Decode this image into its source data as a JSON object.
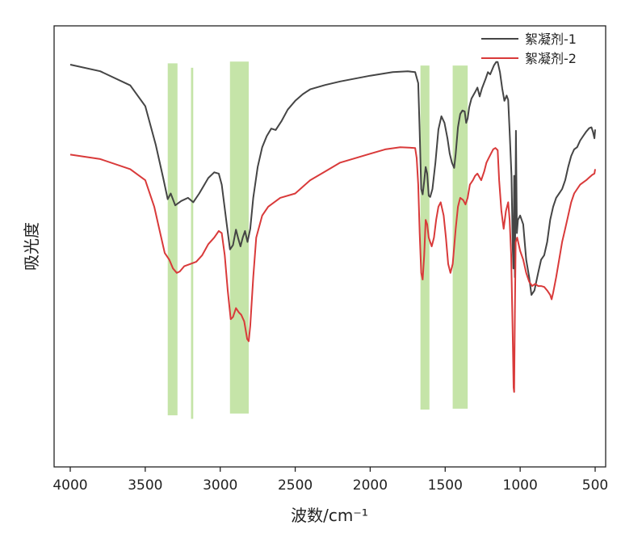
{
  "chart_data": {
    "type": "line",
    "title": "",
    "xlabel": "波数/cm⁻¹",
    "ylabel": "吸光度",
    "xlim": [
      4000,
      500
    ],
    "x_reversed": true,
    "y_ticks_shown": false,
    "xticks": [
      4000,
      3500,
      3000,
      2500,
      2000,
      1500,
      1000,
      500
    ],
    "ylim": [
      0,
      1
    ],
    "grid": false,
    "legend_position": "top-right",
    "highlight_color": "#b5dc8f",
    "highlight_bands": [
      {
        "from": 3350,
        "to": 3285,
        "top": 0.915,
        "bottom": 0.117
      },
      {
        "from": 3195,
        "to": 3180,
        "top": 0.905,
        "bottom": 0.109
      },
      {
        "from": 2935,
        "to": 2810,
        "top": 0.919,
        "bottom": 0.121
      },
      {
        "from": 1665,
        "to": 1605,
        "top": 0.91,
        "bottom": 0.13
      },
      {
        "from": 1450,
        "to": 1350,
        "top": 0.91,
        "bottom": 0.132
      }
    ],
    "series": [
      {
        "name": "絮凝剂-1",
        "color": "#454545",
        "points": [
          [
            4000,
            0.912
          ],
          [
            3800,
            0.897
          ],
          [
            3600,
            0.865
          ],
          [
            3500,
            0.818
          ],
          [
            3430,
            0.73
          ],
          [
            3380,
            0.655
          ],
          [
            3350,
            0.607
          ],
          [
            3330,
            0.62
          ],
          [
            3300,
            0.593
          ],
          [
            3260,
            0.603
          ],
          [
            3215,
            0.61
          ],
          [
            3180,
            0.6
          ],
          [
            3140,
            0.62
          ],
          [
            3080,
            0.655
          ],
          [
            3040,
            0.668
          ],
          [
            3010,
            0.665
          ],
          [
            2990,
            0.64
          ],
          [
            2960,
            0.56
          ],
          [
            2935,
            0.493
          ],
          [
            2915,
            0.503
          ],
          [
            2895,
            0.538
          ],
          [
            2880,
            0.518
          ],
          [
            2865,
            0.5
          ],
          [
            2850,
            0.52
          ],
          [
            2835,
            0.535
          ],
          [
            2818,
            0.51
          ],
          [
            2800,
            0.54
          ],
          [
            2780,
            0.61
          ],
          [
            2750,
            0.68
          ],
          [
            2720,
            0.725
          ],
          [
            2690,
            0.75
          ],
          [
            2660,
            0.767
          ],
          [
            2630,
            0.764
          ],
          [
            2590,
            0.785
          ],
          [
            2550,
            0.81
          ],
          [
            2500,
            0.83
          ],
          [
            2450,
            0.845
          ],
          [
            2400,
            0.856
          ],
          [
            2300,
            0.866
          ],
          [
            2200,
            0.874
          ],
          [
            2000,
            0.887
          ],
          [
            1850,
            0.895
          ],
          [
            1750,
            0.897
          ],
          [
            1700,
            0.895
          ],
          [
            1680,
            0.87
          ],
          [
            1670,
            0.76
          ],
          [
            1660,
            0.63
          ],
          [
            1650,
            0.618
          ],
          [
            1640,
            0.648
          ],
          [
            1630,
            0.68
          ],
          [
            1620,
            0.665
          ],
          [
            1610,
            0.615
          ],
          [
            1600,
            0.612
          ],
          [
            1585,
            0.63
          ],
          [
            1565,
            0.69
          ],
          [
            1545,
            0.765
          ],
          [
            1525,
            0.795
          ],
          [
            1505,
            0.78
          ],
          [
            1485,
            0.745
          ],
          [
            1470,
            0.71
          ],
          [
            1455,
            0.69
          ],
          [
            1440,
            0.678
          ],
          [
            1430,
            0.71
          ],
          [
            1415,
            0.77
          ],
          [
            1400,
            0.8
          ],
          [
            1385,
            0.808
          ],
          [
            1370,
            0.806
          ],
          [
            1360,
            0.78
          ],
          [
            1350,
            0.79
          ],
          [
            1340,
            0.815
          ],
          [
            1325,
            0.835
          ],
          [
            1300,
            0.85
          ],
          [
            1285,
            0.86
          ],
          [
            1270,
            0.84
          ],
          [
            1255,
            0.858
          ],
          [
            1230,
            0.88
          ],
          [
            1215,
            0.895
          ],
          [
            1200,
            0.89
          ],
          [
            1175,
            0.91
          ],
          [
            1160,
            0.918
          ],
          [
            1150,
            0.918
          ],
          [
            1135,
            0.895
          ],
          [
            1120,
            0.858
          ],
          [
            1105,
            0.83
          ],
          [
            1090,
            0.842
          ],
          [
            1080,
            0.832
          ],
          [
            1070,
            0.76
          ],
          [
            1058,
            0.66
          ],
          [
            1050,
            0.5
          ],
          [
            1045,
            0.45
          ],
          [
            1040,
            0.66
          ],
          [
            1035,
            0.43
          ],
          [
            1028,
            0.762
          ],
          [
            1022,
            0.53
          ],
          [
            1015,
            0.56
          ],
          [
            1000,
            0.57
          ],
          [
            980,
            0.55
          ],
          [
            960,
            0.47
          ],
          [
            940,
            0.43
          ],
          [
            925,
            0.39
          ],
          [
            905,
            0.4
          ],
          [
            880,
            0.44
          ],
          [
            860,
            0.47
          ],
          [
            840,
            0.48
          ],
          [
            820,
            0.51
          ],
          [
            800,
            0.56
          ],
          [
            780,
            0.59
          ],
          [
            760,
            0.61
          ],
          [
            740,
            0.62
          ],
          [
            720,
            0.63
          ],
          [
            700,
            0.65
          ],
          [
            680,
            0.68
          ],
          [
            660,
            0.705
          ],
          [
            640,
            0.72
          ],
          [
            620,
            0.725
          ],
          [
            600,
            0.74
          ],
          [
            580,
            0.75
          ],
          [
            560,
            0.76
          ],
          [
            540,
            0.768
          ],
          [
            525,
            0.77
          ],
          [
            515,
            0.76
          ],
          [
            505,
            0.745
          ],
          [
            500,
            0.765
          ]
        ]
      },
      {
        "name": "絮凝剂-2",
        "color": "#d93a3a",
        "points": [
          [
            4000,
            0.708
          ],
          [
            3800,
            0.698
          ],
          [
            3600,
            0.675
          ],
          [
            3500,
            0.65
          ],
          [
            3440,
            0.59
          ],
          [
            3400,
            0.53
          ],
          [
            3370,
            0.485
          ],
          [
            3340,
            0.47
          ],
          [
            3315,
            0.45
          ],
          [
            3290,
            0.44
          ],
          [
            3270,
            0.443
          ],
          [
            3240,
            0.455
          ],
          [
            3200,
            0.46
          ],
          [
            3160,
            0.465
          ],
          [
            3120,
            0.48
          ],
          [
            3080,
            0.505
          ],
          [
            3040,
            0.52
          ],
          [
            3010,
            0.535
          ],
          [
            2990,
            0.53
          ],
          [
            2970,
            0.48
          ],
          [
            2950,
            0.4
          ],
          [
            2930,
            0.335
          ],
          [
            2915,
            0.34
          ],
          [
            2895,
            0.36
          ],
          [
            2875,
            0.35
          ],
          [
            2860,
            0.345
          ],
          [
            2840,
            0.33
          ],
          [
            2820,
            0.29
          ],
          [
            2810,
            0.285
          ],
          [
            2800,
            0.32
          ],
          [
            2780,
            0.43
          ],
          [
            2760,
            0.52
          ],
          [
            2720,
            0.57
          ],
          [
            2680,
            0.59
          ],
          [
            2600,
            0.61
          ],
          [
            2500,
            0.62
          ],
          [
            2400,
            0.65
          ],
          [
            2300,
            0.67
          ],
          [
            2200,
            0.69
          ],
          [
            2100,
            0.7
          ],
          [
            2000,
            0.71
          ],
          [
            1900,
            0.72
          ],
          [
            1800,
            0.725
          ],
          [
            1700,
            0.723
          ],
          [
            1690,
            0.7
          ],
          [
            1680,
            0.64
          ],
          [
            1670,
            0.53
          ],
          [
            1660,
            0.44
          ],
          [
            1650,
            0.425
          ],
          [
            1640,
            0.48
          ],
          [
            1630,
            0.56
          ],
          [
            1620,
            0.55
          ],
          [
            1610,
            0.52
          ],
          [
            1600,
            0.51
          ],
          [
            1590,
            0.5
          ],
          [
            1575,
            0.52
          ],
          [
            1560,
            0.56
          ],
          [
            1545,
            0.59
          ],
          [
            1530,
            0.6
          ],
          [
            1510,
            0.57
          ],
          [
            1495,
            0.52
          ],
          [
            1480,
            0.46
          ],
          [
            1465,
            0.44
          ],
          [
            1450,
            0.46
          ],
          [
            1430,
            0.54
          ],
          [
            1415,
            0.59
          ],
          [
            1400,
            0.61
          ],
          [
            1380,
            0.605
          ],
          [
            1365,
            0.595
          ],
          [
            1350,
            0.61
          ],
          [
            1335,
            0.64
          ],
          [
            1315,
            0.65
          ],
          [
            1300,
            0.66
          ],
          [
            1285,
            0.665
          ],
          [
            1260,
            0.65
          ],
          [
            1240,
            0.67
          ],
          [
            1225,
            0.69
          ],
          [
            1210,
            0.7
          ],
          [
            1195,
            0.71
          ],
          [
            1180,
            0.72
          ],
          [
            1165,
            0.723
          ],
          [
            1150,
            0.718
          ],
          [
            1140,
            0.65
          ],
          [
            1125,
            0.58
          ],
          [
            1110,
            0.54
          ],
          [
            1095,
            0.58
          ],
          [
            1080,
            0.6
          ],
          [
            1070,
            0.56
          ],
          [
            1060,
            0.48
          ],
          [
            1050,
            0.3
          ],
          [
            1044,
            0.18
          ],
          [
            1040,
            0.17
          ],
          [
            1035,
            0.35
          ],
          [
            1030,
            0.51
          ],
          [
            1020,
            0.52
          ],
          [
            1000,
            0.49
          ],
          [
            980,
            0.47
          ],
          [
            960,
            0.44
          ],
          [
            940,
            0.42
          ],
          [
            920,
            0.41
          ],
          [
            900,
            0.415
          ],
          [
            880,
            0.41
          ],
          [
            860,
            0.41
          ],
          [
            840,
            0.408
          ],
          [
            820,
            0.4
          ],
          [
            800,
            0.39
          ],
          [
            790,
            0.38
          ],
          [
            780,
            0.395
          ],
          [
            760,
            0.43
          ],
          [
            740,
            0.47
          ],
          [
            720,
            0.51
          ],
          [
            700,
            0.54
          ],
          [
            680,
            0.57
          ],
          [
            660,
            0.6
          ],
          [
            640,
            0.62
          ],
          [
            620,
            0.63
          ],
          [
            600,
            0.64
          ],
          [
            580,
            0.645
          ],
          [
            560,
            0.65
          ],
          [
            540,
            0.656
          ],
          [
            520,
            0.662
          ],
          [
            505,
            0.665
          ],
          [
            500,
            0.675
          ]
        ]
      }
    ]
  }
}
